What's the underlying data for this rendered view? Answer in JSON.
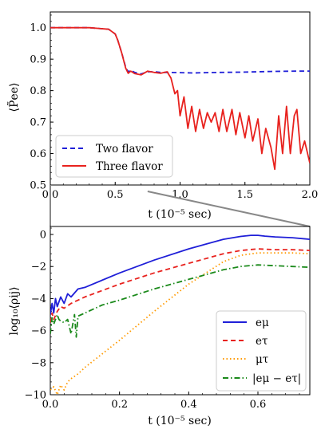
{
  "chart_data": [
    {
      "type": "line",
      "xlabel": "t (10⁻⁵ sec)",
      "ylabel": "⟨P̃ee⟩",
      "xlim": [
        0.0,
        2.0
      ],
      "ylim": [
        0.5,
        1.05
      ],
      "xticks": [
        "0.0",
        "0.5",
        "1.0",
        "1.5",
        "2.0"
      ],
      "xtick_values": [
        0.0,
        0.5,
        1.0,
        1.5,
        2.0
      ],
      "yticks": [
        "0.5",
        "0.6",
        "0.7",
        "0.8",
        "0.9",
        "1.0"
      ],
      "ytick_values": [
        0.5,
        0.6,
        0.7,
        0.8,
        0.9,
        1.0
      ],
      "legend_position": "lower-left",
      "series": [
        {
          "name": "Two flavor",
          "color": "#1f1fd8",
          "style": "dashed",
          "x": [
            0.0,
            0.3,
            0.45,
            0.5,
            0.52,
            0.55,
            0.58,
            0.6,
            0.62,
            0.65,
            0.7,
            0.75,
            0.8,
            0.85,
            0.9,
            1.0,
            1.1,
            1.2,
            1.3,
            1.5,
            1.7,
            1.9,
            2.0
          ],
          "y": [
            1.0,
            1.0,
            0.995,
            0.98,
            0.96,
            0.92,
            0.875,
            0.86,
            0.865,
            0.858,
            0.853,
            0.86,
            0.86,
            0.858,
            0.858,
            0.857,
            0.856,
            0.857,
            0.858,
            0.859,
            0.861,
            0.862,
            0.862
          ]
        },
        {
          "name": "Three flavor",
          "color": "#e8221e",
          "style": "solid",
          "x": [
            0.0,
            0.3,
            0.45,
            0.5,
            0.52,
            0.55,
            0.58,
            0.6,
            0.62,
            0.65,
            0.7,
            0.75,
            0.8,
            0.85,
            0.9,
            0.93,
            0.96,
            0.98,
            1.0,
            1.03,
            1.06,
            1.09,
            1.12,
            1.15,
            1.18,
            1.21,
            1.24,
            1.27,
            1.3,
            1.33,
            1.36,
            1.4,
            1.43,
            1.46,
            1.5,
            1.53,
            1.56,
            1.6,
            1.63,
            1.66,
            1.7,
            1.73,
            1.76,
            1.79,
            1.82,
            1.85,
            1.88,
            1.9,
            1.93,
            1.96,
            2.0
          ],
          "y": [
            1.0,
            1.0,
            0.995,
            0.98,
            0.96,
            0.92,
            0.872,
            0.855,
            0.862,
            0.854,
            0.85,
            0.862,
            0.858,
            0.855,
            0.86,
            0.84,
            0.79,
            0.8,
            0.72,
            0.78,
            0.68,
            0.75,
            0.67,
            0.74,
            0.68,
            0.73,
            0.7,
            0.73,
            0.67,
            0.74,
            0.67,
            0.74,
            0.66,
            0.73,
            0.65,
            0.72,
            0.64,
            0.71,
            0.6,
            0.68,
            0.62,
            0.55,
            0.72,
            0.6,
            0.75,
            0.6,
            0.72,
            0.74,
            0.6,
            0.64,
            0.57
          ]
        }
      ]
    },
    {
      "type": "line",
      "xlabel": "t (10⁻⁵ sec)",
      "ylabel": "log₁₀⟨ρij⟩",
      "xlim": [
        0.0,
        0.75
      ],
      "ylim": [
        -10,
        0.5
      ],
      "xticks": [
        "0.0",
        "0.2",
        "0.4",
        "0.6"
      ],
      "xtick_values": [
        0.0,
        0.2,
        0.4,
        0.6
      ],
      "yticks": [
        "0",
        "−2",
        "−4",
        "−6",
        "−8",
        "−10"
      ],
      "ytick_values": [
        0,
        -2,
        -4,
        -6,
        -8,
        -10
      ],
      "legend_position": "lower-right",
      "series": [
        {
          "name": "eμ",
          "color": "#1f1fd8",
          "style": "solid",
          "x": [
            0.0,
            0.005,
            0.01,
            0.015,
            0.02,
            0.03,
            0.04,
            0.05,
            0.06,
            0.08,
            0.1,
            0.2,
            0.3,
            0.4,
            0.5,
            0.55,
            0.58,
            0.6,
            0.62,
            0.65,
            0.7,
            0.75
          ],
          "y": [
            -5.0,
            -4.3,
            -4.9,
            -4.0,
            -4.5,
            -3.9,
            -4.3,
            -3.7,
            -3.9,
            -3.4,
            -3.3,
            -2.4,
            -1.6,
            -0.9,
            -0.3,
            -0.12,
            -0.05,
            -0.05,
            -0.1,
            -0.15,
            -0.2,
            -0.3
          ]
        },
        {
          "name": "eτ",
          "color": "#e8221e",
          "style": "dashed",
          "x": [
            0.0,
            0.005,
            0.01,
            0.02,
            0.03,
            0.04,
            0.06,
            0.08,
            0.1,
            0.2,
            0.3,
            0.4,
            0.5,
            0.55,
            0.6,
            0.65,
            0.7,
            0.75
          ],
          "y": [
            -5.5,
            -4.9,
            -5.3,
            -4.8,
            -4.5,
            -4.6,
            -4.3,
            -4.1,
            -3.9,
            -3.1,
            -2.4,
            -1.8,
            -1.2,
            -1.0,
            -0.9,
            -0.95,
            -0.95,
            -1.0
          ]
        },
        {
          "name": "μτ",
          "color": "#ff9a00",
          "style": "dotted",
          "x": [
            0.0,
            0.01,
            0.02,
            0.03,
            0.04,
            0.05,
            0.06,
            0.08,
            0.1,
            0.2,
            0.3,
            0.4,
            0.5,
            0.55,
            0.6,
            0.65,
            0.7,
            0.75
          ],
          "y": [
            -9.7,
            -9.5,
            -10.0,
            -9.4,
            -9.7,
            -9.2,
            -9.0,
            -8.7,
            -8.3,
            -6.6,
            -4.8,
            -3.1,
            -1.7,
            -1.3,
            -1.15,
            -1.15,
            -1.15,
            -1.2
          ]
        },
        {
          "name": "|eμ − eτ|",
          "color": "#1b8a1b",
          "style": "dashdot",
          "x": [
            0.0,
            0.005,
            0.01,
            0.02,
            0.025,
            0.03,
            0.04,
            0.05,
            0.06,
            0.07,
            0.075,
            0.08,
            0.09,
            0.1,
            0.15,
            0.2,
            0.3,
            0.4,
            0.5,
            0.55,
            0.6,
            0.65,
            0.7,
            0.75
          ],
          "y": [
            -6.2,
            -5.2,
            -5.6,
            -5.0,
            -5.3,
            -5.4,
            -5.5,
            -5.3,
            -6.2,
            -5.0,
            -6.4,
            -5.1,
            -5.0,
            -4.9,
            -4.4,
            -4.1,
            -3.4,
            -2.8,
            -2.2,
            -2.0,
            -1.9,
            -1.95,
            -2.0,
            -2.05
          ]
        }
      ]
    }
  ]
}
